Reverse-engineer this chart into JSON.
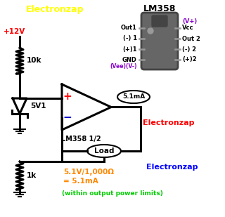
{
  "bg_color": "#ffffff",
  "electronzap_yellow": "#ffff00",
  "electronzap_red": "#ff0000",
  "electronzap_blue": "#0000ff",
  "electronzap_purple": "#8800cc",
  "orange_color": "#ff8800",
  "green_color": "#00cc00",
  "black": "#000000",
  "gray_ic": "#666666",
  "gray_ic_dark": "#444444",
  "gray_pin": "#999999",
  "text_electronzap_top": "Electronzap",
  "text_electronzap_mid": "Electronzap",
  "text_electronzap_bot": "Electronzap",
  "text_12v": "+12V",
  "text_10k": "10k",
  "text_5v1": "5V1",
  "text_lm358_label": "LM358 1/2",
  "text_lm358_title": "LM358",
  "text_5_1ma": "5.1mA",
  "text_load": "Load",
  "text_1k": "1k",
  "text_formula_line1": "5.1V/1,000Ω",
  "text_formula_line2": "= 5.1mA",
  "text_within": "(within output power limits)",
  "text_out1": "Out1",
  "text_minus1": "(-) 1",
  "text_plus1": "(+)1",
  "text_gnd": "GND",
  "text_vee": "(Vee)(V-)",
  "text_vcc_top": "(V+)",
  "text_vcc": "Vcc",
  "text_out2": "Out 2",
  "text_minus2": "(-) 2",
  "text_plus2": "(+)2",
  "lw": 2.2,
  "lw_thin": 1.5
}
